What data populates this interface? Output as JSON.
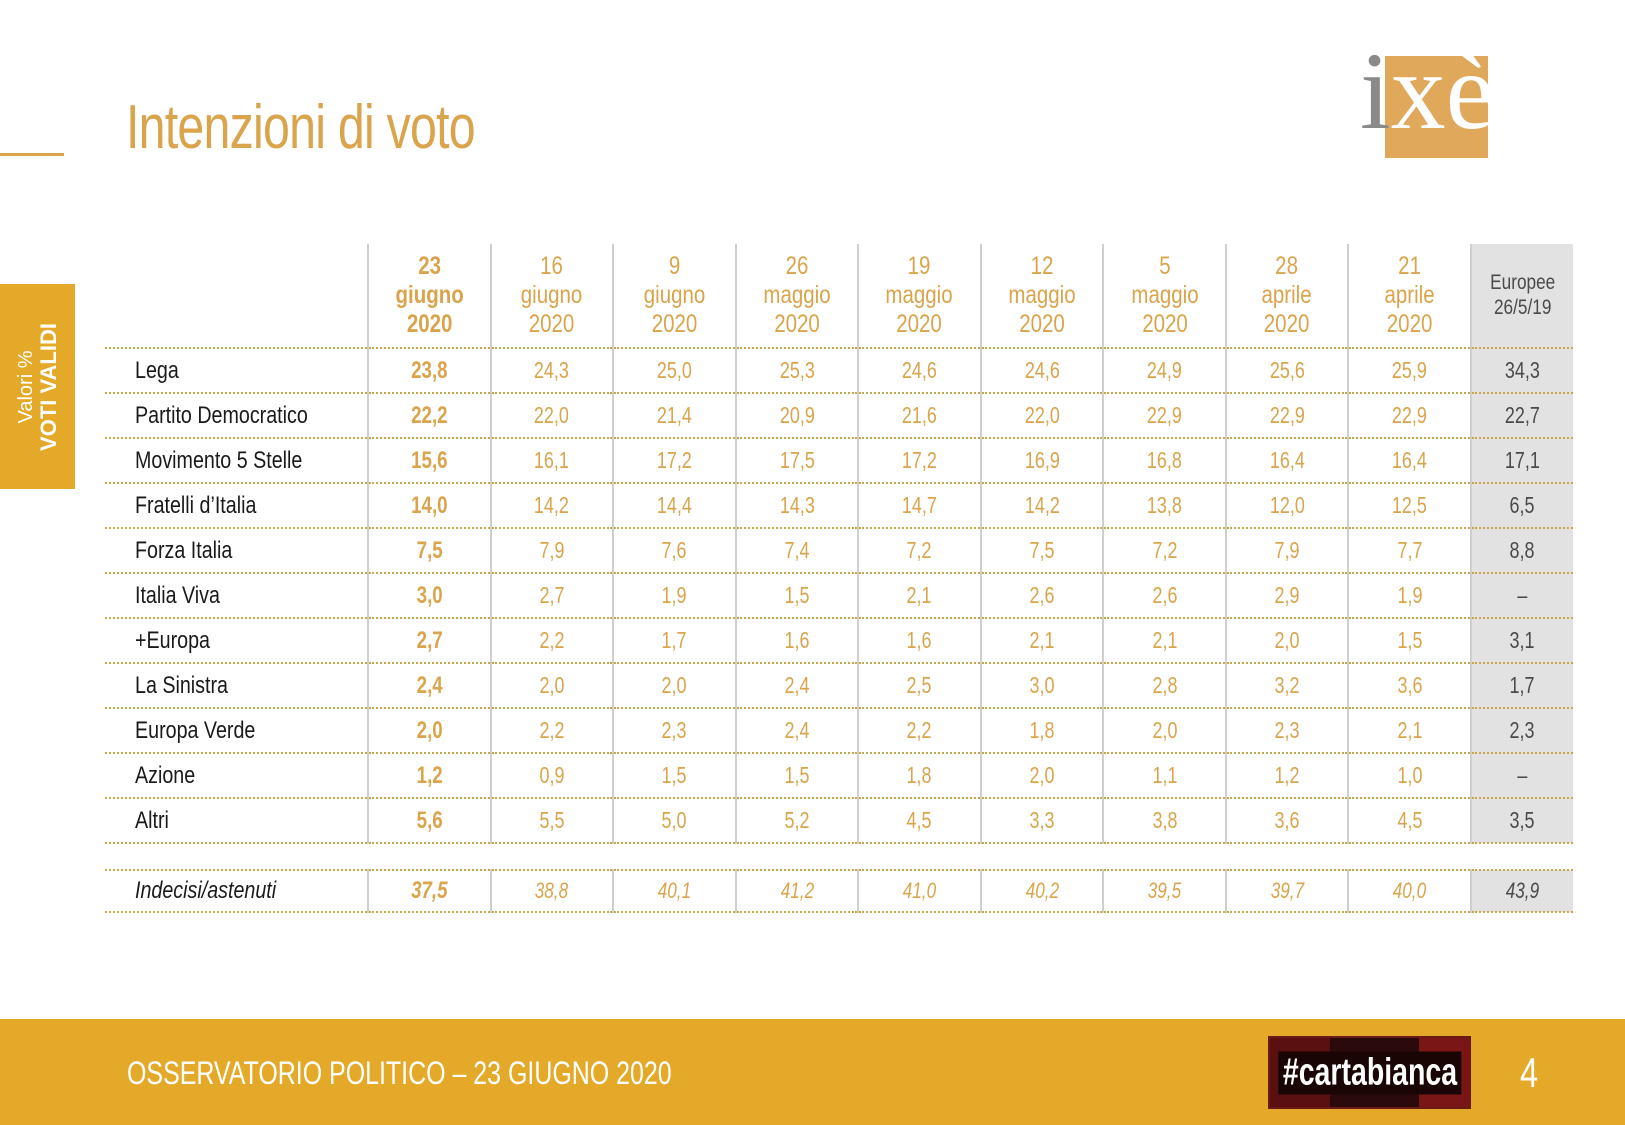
{
  "page": {
    "title": "Intenzioni di voto",
    "side_tab": {
      "line1": "Valori %",
      "line2": "VOTI VALIDI"
    },
    "logo": {
      "text_i": "i",
      "text_xe": "xè"
    },
    "footer": {
      "text": "OSSERVATORIO POLITICO – 23 GIUGNO 2020",
      "badge": "#cartabianca",
      "page_number": "4"
    }
  },
  "table": {
    "columns": [
      {
        "day": "23",
        "month": "giugno",
        "year": "2020"
      },
      {
        "day": "16",
        "month": "giugno",
        "year": "2020"
      },
      {
        "day": "9",
        "month": "giugno",
        "year": "2020"
      },
      {
        "day": "26",
        "month": "maggio",
        "year": "2020"
      },
      {
        "day": "19",
        "month": "maggio",
        "year": "2020"
      },
      {
        "day": "12",
        "month": "maggio",
        "year": "2020"
      },
      {
        "day": "5",
        "month": "maggio",
        "year": "2020"
      },
      {
        "day": "28",
        "month": "aprile",
        "year": "2020"
      },
      {
        "day": "21",
        "month": "aprile",
        "year": "2020"
      }
    ],
    "europee": {
      "line1": "Europee",
      "line2": "26/5/19"
    },
    "rows": [
      {
        "party": "Lega",
        "values": [
          "23,8",
          "24,3",
          "25,0",
          "25,3",
          "24,6",
          "24,6",
          "24,9",
          "25,6",
          "25,9"
        ],
        "europee": "34,3"
      },
      {
        "party": "Partito Democratico",
        "values": [
          "22,2",
          "22,0",
          "21,4",
          "20,9",
          "21,6",
          "22,0",
          "22,9",
          "22,9",
          "22,9"
        ],
        "europee": "22,7"
      },
      {
        "party": "Movimento 5 Stelle",
        "values": [
          "15,6",
          "16,1",
          "17,2",
          "17,5",
          "17,2",
          "16,9",
          "16,8",
          "16,4",
          "16,4"
        ],
        "europee": "17,1"
      },
      {
        "party": "Fratelli d’Italia",
        "values": [
          "14,0",
          "14,2",
          "14,4",
          "14,3",
          "14,7",
          "14,2",
          "13,8",
          "12,0",
          "12,5"
        ],
        "europee": "6,5"
      },
      {
        "party": "Forza Italia",
        "values": [
          "7,5",
          "7,9",
          "7,6",
          "7,4",
          "7,2",
          "7,5",
          "7,2",
          "7,9",
          "7,7"
        ],
        "europee": "8,8"
      },
      {
        "party": "Italia Viva",
        "values": [
          "3,0",
          "2,7",
          "1,9",
          "1,5",
          "2,1",
          "2,6",
          "2,6",
          "2,9",
          "1,9"
        ],
        "europee": "–"
      },
      {
        "party": "+Europa",
        "values": [
          "2,7",
          "2,2",
          "1,7",
          "1,6",
          "1,6",
          "2,1",
          "2,1",
          "2,0",
          "1,5"
        ],
        "europee": "3,1"
      },
      {
        "party": "La Sinistra",
        "values": [
          "2,4",
          "2,0",
          "2,0",
          "2,4",
          "2,5",
          "3,0",
          "2,8",
          "3,2",
          "3,6"
        ],
        "europee": "1,7"
      },
      {
        "party": "Europa Verde",
        "values": [
          "2,0",
          "2,2",
          "2,3",
          "2,4",
          "2,2",
          "1,8",
          "2,0",
          "2,3",
          "2,1"
        ],
        "europee": "2,3"
      },
      {
        "party": "Azione",
        "values": [
          "1,2",
          "0,9",
          "1,5",
          "1,5",
          "1,8",
          "2,0",
          "1,1",
          "1,2",
          "1,0"
        ],
        "europee": "–"
      },
      {
        "party": "Altri",
        "values": [
          "5,6",
          "5,5",
          "5,0",
          "5,2",
          "4,5",
          "3,3",
          "3,8",
          "3,6",
          "4,5"
        ],
        "europee": "3,5"
      }
    ],
    "undecided": {
      "party": "Indecisi/astenuti",
      "values": [
        "37,5",
        "38,8",
        "40,1",
        "41,2",
        "41,0",
        "40,2",
        "39,5",
        "39,7",
        "40,0"
      ],
      "europee": "43,9"
    }
  },
  "colors": {
    "accent": "#d9a44b",
    "band": "#e4a929",
    "europee_bg": "#e2e2e2"
  }
}
